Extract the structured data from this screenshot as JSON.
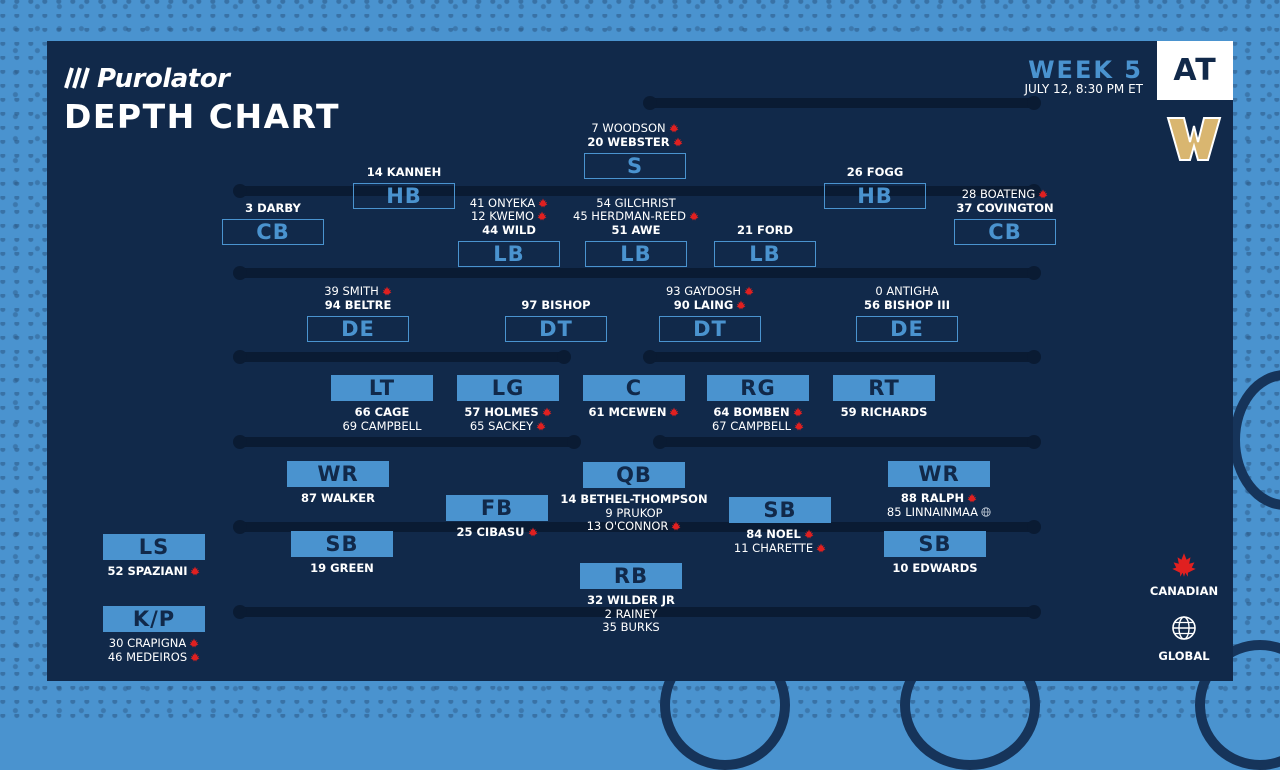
{
  "header": {
    "sponsor": "Purolator",
    "title": "DEPTH CHART",
    "week": "WEEK 5",
    "date": "JULY 12, 8:30 PM ET",
    "at": "AT",
    "opponent_logo": "winnipeg-w-logo"
  },
  "colors": {
    "panel": "#11294a",
    "accent": "#4a93cf",
    "leaf": "#e02020",
    "text": "#ffffff"
  },
  "legend": {
    "canadian": "CANADIAN",
    "global": "GLOBAL"
  },
  "defense": [
    {
      "pos": "S",
      "names": [
        {
          "t": "7 WOODSON",
          "bold": false,
          "flag": "canadian"
        },
        {
          "t": "20 WEBSTER",
          "bold": true,
          "flag": "canadian"
        }
      ]
    },
    {
      "pos": "HB",
      "names": [
        {
          "t": "14 KANNEH",
          "bold": true,
          "flag": ""
        }
      ]
    },
    {
      "pos": "HB",
      "names": [
        {
          "t": "26 FOGG",
          "bold": true,
          "flag": ""
        }
      ]
    },
    {
      "pos": "CB",
      "names": [
        {
          "t": "3 DARBY",
          "bold": true,
          "flag": ""
        }
      ]
    },
    {
      "pos": "CB",
      "names": [
        {
          "t": "28 BOATENG",
          "bold": false,
          "flag": "canadian"
        },
        {
          "t": "37 COVINGTON",
          "bold": true,
          "flag": ""
        }
      ]
    },
    {
      "pos": "LB",
      "names": [
        {
          "t": "41 ONYEKA",
          "bold": false,
          "flag": "canadian"
        },
        {
          "t": "12 KWEMO",
          "bold": false,
          "flag": "canadian"
        },
        {
          "t": "44 WILD",
          "bold": true,
          "flag": ""
        }
      ]
    },
    {
      "pos": "LB",
      "names": [
        {
          "t": "54 GILCHRIST",
          "bold": false,
          "flag": ""
        },
        {
          "t": "45 HERDMAN-REED",
          "bold": false,
          "flag": "canadian"
        },
        {
          "t": "51 AWE",
          "bold": true,
          "flag": ""
        }
      ]
    },
    {
      "pos": "LB",
      "names": [
        {
          "t": "21 FORD",
          "bold": true,
          "flag": ""
        }
      ]
    },
    {
      "pos": "DE",
      "names": [
        {
          "t": "39 SMITH",
          "bold": false,
          "flag": "canadian"
        },
        {
          "t": "94 BELTRE",
          "bold": true,
          "flag": ""
        }
      ]
    },
    {
      "pos": "DT",
      "names": [
        {
          "t": "97 BISHOP",
          "bold": true,
          "flag": ""
        }
      ]
    },
    {
      "pos": "DT",
      "names": [
        {
          "t": "93 GAYDOSH",
          "bold": false,
          "flag": "canadian"
        },
        {
          "t": "90 LAING",
          "bold": true,
          "flag": "canadian"
        }
      ]
    },
    {
      "pos": "DE",
      "names": [
        {
          "t": "0 ANTIGHA",
          "bold": false,
          "flag": ""
        },
        {
          "t": "56 BISHOP III",
          "bold": true,
          "flag": ""
        }
      ]
    }
  ],
  "offense": [
    {
      "pos": "LT",
      "names": [
        {
          "t": "66 CAGE",
          "bold": true,
          "flag": ""
        },
        {
          "t": "69 CAMPBELL",
          "bold": false,
          "flag": ""
        }
      ]
    },
    {
      "pos": "LG",
      "names": [
        {
          "t": "57 HOLMES",
          "bold": true,
          "flag": "canadian"
        },
        {
          "t": "65 SACKEY",
          "bold": false,
          "flag": "canadian"
        }
      ]
    },
    {
      "pos": "C",
      "names": [
        {
          "t": "61 MCEWEN",
          "bold": true,
          "flag": "canadian"
        }
      ]
    },
    {
      "pos": "RG",
      "names": [
        {
          "t": "64 BOMBEN",
          "bold": true,
          "flag": "canadian"
        },
        {
          "t": "67 CAMPBELL",
          "bold": false,
          "flag": "canadian"
        }
      ]
    },
    {
      "pos": "RT",
      "names": [
        {
          "t": "59 RICHARDS",
          "bold": true,
          "flag": ""
        }
      ]
    },
    {
      "pos": "WR",
      "names": [
        {
          "t": "87 WALKER",
          "bold": true,
          "flag": ""
        }
      ]
    },
    {
      "pos": "QB",
      "names": [
        {
          "t": "14 BETHEL-THOMPSON",
          "bold": true,
          "flag": ""
        },
        {
          "t": "9 PRUKOP",
          "bold": false,
          "flag": ""
        },
        {
          "t": "13 O'CONNOR",
          "bold": false,
          "flag": "canadian"
        }
      ]
    },
    {
      "pos": "WR",
      "names": [
        {
          "t": "88 RALPH",
          "bold": true,
          "flag": "canadian"
        },
        {
          "t": "85 LINNAINMAA",
          "bold": false,
          "flag": "global"
        }
      ]
    },
    {
      "pos": "FB",
      "names": [
        {
          "t": "25 CIBASU",
          "bold": true,
          "flag": "canadian"
        }
      ]
    },
    {
      "pos": "SB",
      "names": [
        {
          "t": "84 NOEL",
          "bold": true,
          "flag": "canadian"
        },
        {
          "t": "11 CHARETTE",
          "bold": false,
          "flag": "canadian"
        }
      ]
    },
    {
      "pos": "SB",
      "names": [
        {
          "t": "19 GREEN",
          "bold": true,
          "flag": ""
        }
      ]
    },
    {
      "pos": "SB",
      "names": [
        {
          "t": "10 EDWARDS",
          "bold": true,
          "flag": ""
        }
      ]
    },
    {
      "pos": "RB",
      "names": [
        {
          "t": "32 WILDER JR",
          "bold": true,
          "flag": ""
        },
        {
          "t": "2 RAINEY",
          "bold": false,
          "flag": ""
        },
        {
          "t": "35 BURKS",
          "bold": false,
          "flag": ""
        }
      ]
    }
  ],
  "special": [
    {
      "pos": "LS",
      "names": [
        {
          "t": "52 SPAZIANI",
          "bold": true,
          "flag": "canadian"
        }
      ]
    },
    {
      "pos": "K/P",
      "names": [
        {
          "t": "30 CRAPIGNA",
          "bold": false,
          "flag": "canadian"
        },
        {
          "t": "46 MEDEIROS",
          "bold": false,
          "flag": "canadian"
        }
      ]
    }
  ]
}
